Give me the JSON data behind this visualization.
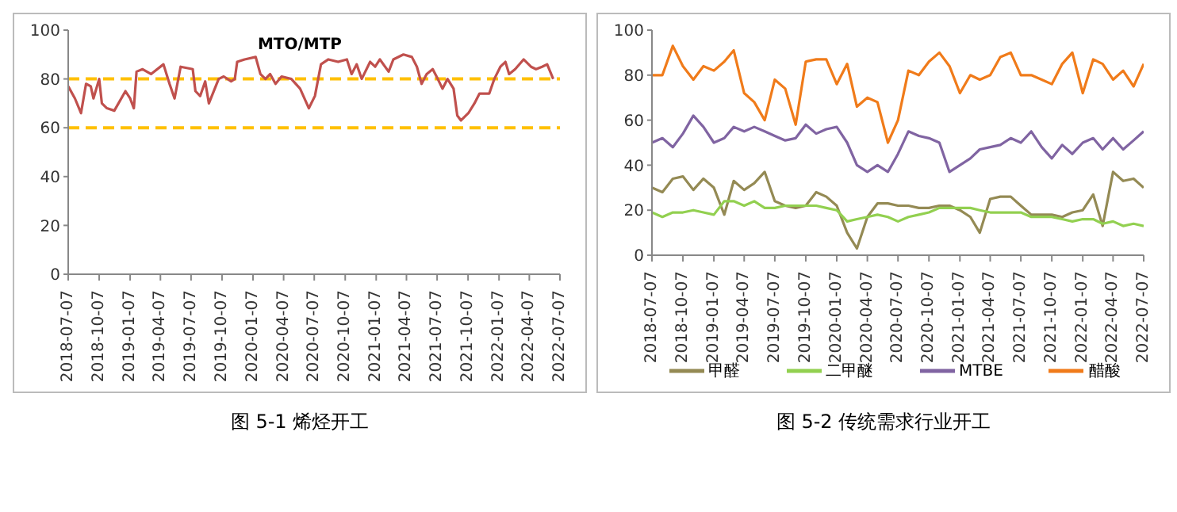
{
  "chart_data": [
    {
      "type": "line",
      "title": "MTO/MTP",
      "annotations": [
        "图 5-1 烯烃开工"
      ],
      "legend": false,
      "grid": false,
      "xlim": [
        "2018-07-07",
        "2022-07-07"
      ],
      "xticks": [
        "2018-07-07",
        "2018-10-07",
        "2019-01-07",
        "2019-04-07",
        "2019-07-07",
        "2019-10-07",
        "2020-01-07",
        "2020-04-07",
        "2020-07-07",
        "2020-10-07",
        "2021-01-07",
        "2021-04-07",
        "2021-07-07",
        "2021-10-07",
        "2022-01-07",
        "2022-04-07",
        "2022-07-07"
      ],
      "ylim": [
        0,
        100
      ],
      "yticks": [
        0,
        20,
        40,
        60,
        80,
        100
      ],
      "ref_lines": [
        {
          "axis": "y",
          "value": 80,
          "color": "#ffc000",
          "line_style": "dashed"
        },
        {
          "axis": "y",
          "value": 60,
          "color": "#ffc000",
          "line_style": "dashed"
        }
      ],
      "series": [
        {
          "color": "#c0504d",
          "x": [
            "2018-07-07",
            "2018-07-27",
            "2018-08-14",
            "2018-08-29",
            "2018-09-12",
            "2018-09-20",
            "2018-10-07",
            "2018-10-15",
            "2018-10-30",
            "2018-11-21",
            "2018-12-24",
            "2019-01-07",
            "2019-01-18",
            "2019-01-26",
            "2019-02-13",
            "2019-03-10",
            "2019-04-16",
            "2019-05-04",
            "2019-05-19",
            "2019-06-06",
            "2019-07-12",
            "2019-07-20",
            "2019-08-03",
            "2019-08-18",
            "2019-08-29",
            "2019-09-27",
            "2019-10-12",
            "2019-11-03",
            "2019-11-14",
            "2019-11-21",
            "2019-12-13",
            "2020-01-15",
            "2020-01-29",
            "2020-02-13",
            "2020-02-27",
            "2020-03-14",
            "2020-04-01",
            "2020-04-30",
            "2020-05-26",
            "2020-06-21",
            "2020-07-09",
            "2020-07-27",
            "2020-08-18",
            "2020-09-16",
            "2020-10-12",
            "2020-10-26",
            "2020-11-10",
            "2020-11-25",
            "2020-12-20",
            "2021-01-04",
            "2021-01-18",
            "2021-02-13",
            "2021-02-27",
            "2021-03-29",
            "2021-04-23",
            "2021-05-08",
            "2021-05-22",
            "2021-06-06",
            "2021-06-24",
            "2021-07-09",
            "2021-07-23",
            "2021-08-07",
            "2021-08-25",
            "2021-09-05",
            "2021-09-16",
            "2021-10-08",
            "2021-10-26",
            "2021-11-10",
            "2021-12-09",
            "2021-12-24",
            "2022-01-11",
            "2022-01-26",
            "2022-02-06",
            "2022-02-24",
            "2022-03-21",
            "2022-04-12",
            "2022-04-27",
            "2022-05-15",
            "2022-05-30",
            "2022-06-17"
          ],
          "values": [
            77,
            72,
            66,
            78,
            77,
            72,
            80,
            70,
            68,
            67,
            75,
            72,
            68,
            83,
            84,
            82,
            86,
            78,
            72,
            85,
            84,
            75,
            73,
            79,
            70,
            80,
            81,
            79,
            80,
            87,
            88,
            89,
            82,
            80,
            82,
            78,
            81,
            80,
            76,
            68,
            73,
            86,
            88,
            87,
            88,
            82,
            86,
            80,
            87,
            85,
            88,
            83,
            88,
            90,
            89,
            85,
            78,
            82,
            84,
            80,
            76,
            80,
            76,
            65,
            63,
            66,
            70,
            74,
            74,
            80,
            85,
            87,
            82,
            84,
            88,
            85,
            84,
            85,
            86,
            80
          ]
        }
      ]
    },
    {
      "type": "line",
      "annotations": [
        "图 5-2 传统需求行业开工"
      ],
      "legend": "bottom",
      "grid": false,
      "x": [
        "2018-07-07",
        "2018-08-07",
        "2018-09-07",
        "2018-10-07",
        "2018-11-07",
        "2018-12-07",
        "2019-01-07",
        "2019-02-07",
        "2019-03-07",
        "2019-04-07",
        "2019-05-07",
        "2019-06-07",
        "2019-07-07",
        "2019-08-07",
        "2019-09-07",
        "2019-10-07",
        "2019-11-07",
        "2019-12-07",
        "2020-01-07",
        "2020-02-07",
        "2020-03-07",
        "2020-04-07",
        "2020-05-07",
        "2020-06-07",
        "2020-07-07",
        "2020-08-07",
        "2020-09-07",
        "2020-10-07",
        "2020-11-07",
        "2020-12-07",
        "2021-01-07",
        "2021-02-07",
        "2021-03-07",
        "2021-04-07",
        "2021-05-07",
        "2021-06-07",
        "2021-07-07",
        "2021-08-07",
        "2021-09-07",
        "2021-10-07",
        "2021-11-07",
        "2021-12-07",
        "2022-01-07",
        "2022-02-07",
        "2022-03-07",
        "2022-04-07",
        "2022-05-07",
        "2022-06-07",
        "2022-07-07"
      ],
      "xlim": [
        "2018-07-07",
        "2022-07-07"
      ],
      "xticks": [
        "2018-07-07",
        "2018-10-07",
        "2019-01-07",
        "2019-04-07",
        "2019-07-07",
        "2019-10-07",
        "2020-01-07",
        "2020-04-07",
        "2020-07-07",
        "2020-10-07",
        "2021-01-07",
        "2021-04-07",
        "2021-07-07",
        "2021-10-07",
        "2022-01-07",
        "2022-04-07",
        "2022-07-07"
      ],
      "ylim": [
        0,
        100
      ],
      "yticks": [
        0,
        20,
        40,
        60,
        80,
        100
      ],
      "series": [
        {
          "name": "甲醛",
          "color": "#948a54",
          "values": [
            30,
            28,
            34,
            35,
            29,
            34,
            30,
            18,
            33,
            29,
            32,
            37,
            24,
            22,
            21,
            22,
            28,
            26,
            22,
            10,
            3,
            17,
            23,
            23,
            22,
            22,
            21,
            21,
            22,
            22,
            20,
            17,
            10,
            25,
            26,
            26,
            22,
            18,
            18,
            18,
            17,
            19,
            20,
            27,
            13,
            37,
            33,
            34,
            30
          ]
        },
        {
          "name": "二甲醚",
          "color": "#92d050",
          "values": [
            19,
            17,
            19,
            19,
            20,
            19,
            18,
            24,
            24,
            22,
            24,
            21,
            21,
            22,
            22,
            22,
            22,
            21,
            20,
            15,
            16,
            17,
            18,
            17,
            15,
            17,
            18,
            19,
            21,
            21,
            21,
            21,
            20,
            19,
            19,
            19,
            19,
            17,
            17,
            17,
            16,
            15,
            16,
            16,
            14,
            15,
            13,
            14,
            13
          ]
        },
        {
          "name": "MTBE",
          "color": "#8064a2",
          "values": [
            50,
            52,
            48,
            54,
            62,
            57,
            50,
            52,
            57,
            55,
            57,
            55,
            53,
            51,
            52,
            58,
            54,
            56,
            57,
            50,
            40,
            37,
            40,
            37,
            45,
            55,
            53,
            52,
            50,
            37,
            40,
            43,
            47,
            48,
            49,
            52,
            50,
            55,
            48,
            43,
            49,
            45,
            50,
            52,
            47,
            52,
            47,
            51,
            55
          ]
        },
        {
          "name": "醋酸",
          "color": "#f07b1a",
          "values": [
            80,
            80,
            93,
            84,
            78,
            84,
            82,
            86,
            91,
            72,
            68,
            60,
            78,
            74,
            58,
            86,
            87,
            87,
            76,
            85,
            66,
            70,
            68,
            50,
            60,
            82,
            80,
            86,
            90,
            84,
            72,
            80,
            78,
            80,
            88,
            90,
            80,
            80,
            78,
            76,
            85,
            90,
            72,
            87,
            85,
            78,
            82,
            75,
            85
          ]
        }
      ]
    }
  ]
}
